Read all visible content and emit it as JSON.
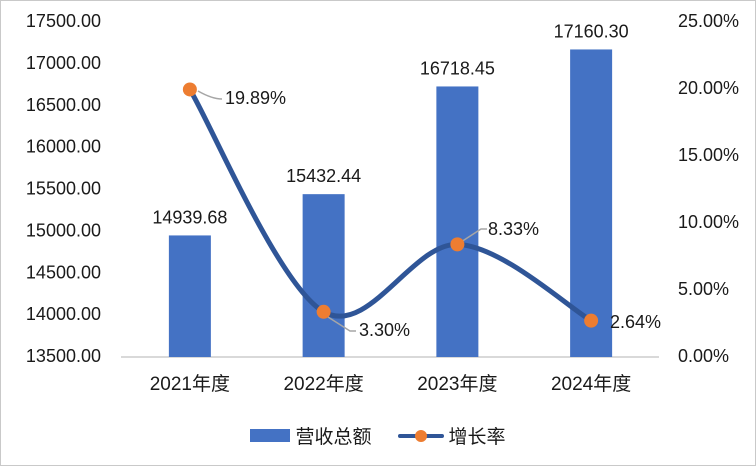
{
  "chart_data": {
    "type": "combo-bar-line",
    "title": "",
    "categories": [
      "2021年度",
      "2022年度",
      "2023年度",
      "2024年度"
    ],
    "series": [
      {
        "name": "营收总额",
        "type": "bar",
        "axis": "left",
        "values": [
          14939.68,
          15432.44,
          16718.45,
          17160.3
        ],
        "data_labels": [
          "14939.68",
          "15432.44",
          "16718.45",
          "17160.30"
        ],
        "color": "#4472C4"
      },
      {
        "name": "增长率",
        "type": "line",
        "axis": "right",
        "smooth": true,
        "values": [
          19.89,
          3.3,
          8.33,
          2.64
        ],
        "data_labels": [
          "19.89%",
          "3.30%",
          "8.33%",
          "2.64%"
        ],
        "line_color": "#2F5597",
        "marker_color": "#ED7D31"
      }
    ],
    "left_axis": {
      "min": 13500,
      "max": 17500,
      "step": 500,
      "tick_labels": [
        "13500.00",
        "14000.00",
        "14500.00",
        "15000.00",
        "15500.00",
        "16000.00",
        "16500.00",
        "17000.00",
        "17500.00"
      ]
    },
    "right_axis": {
      "min": 0,
      "max": 25,
      "step": 5,
      "tick_labels": [
        "0.00%",
        "5.00%",
        "10.00%",
        "15.00%",
        "20.00%",
        "25.00%"
      ]
    },
    "legend": {
      "position": "bottom",
      "items": [
        "营收总额",
        "增长率"
      ]
    },
    "gridlines": false
  },
  "colors": {
    "bar": "#4472C4",
    "line": "#2F5597",
    "marker": "#ED7D31",
    "axis_line": "#D9D9D9",
    "leader_line": "#A6A6A6",
    "text": "#1a1a1a",
    "border": "#C9C9C9"
  }
}
